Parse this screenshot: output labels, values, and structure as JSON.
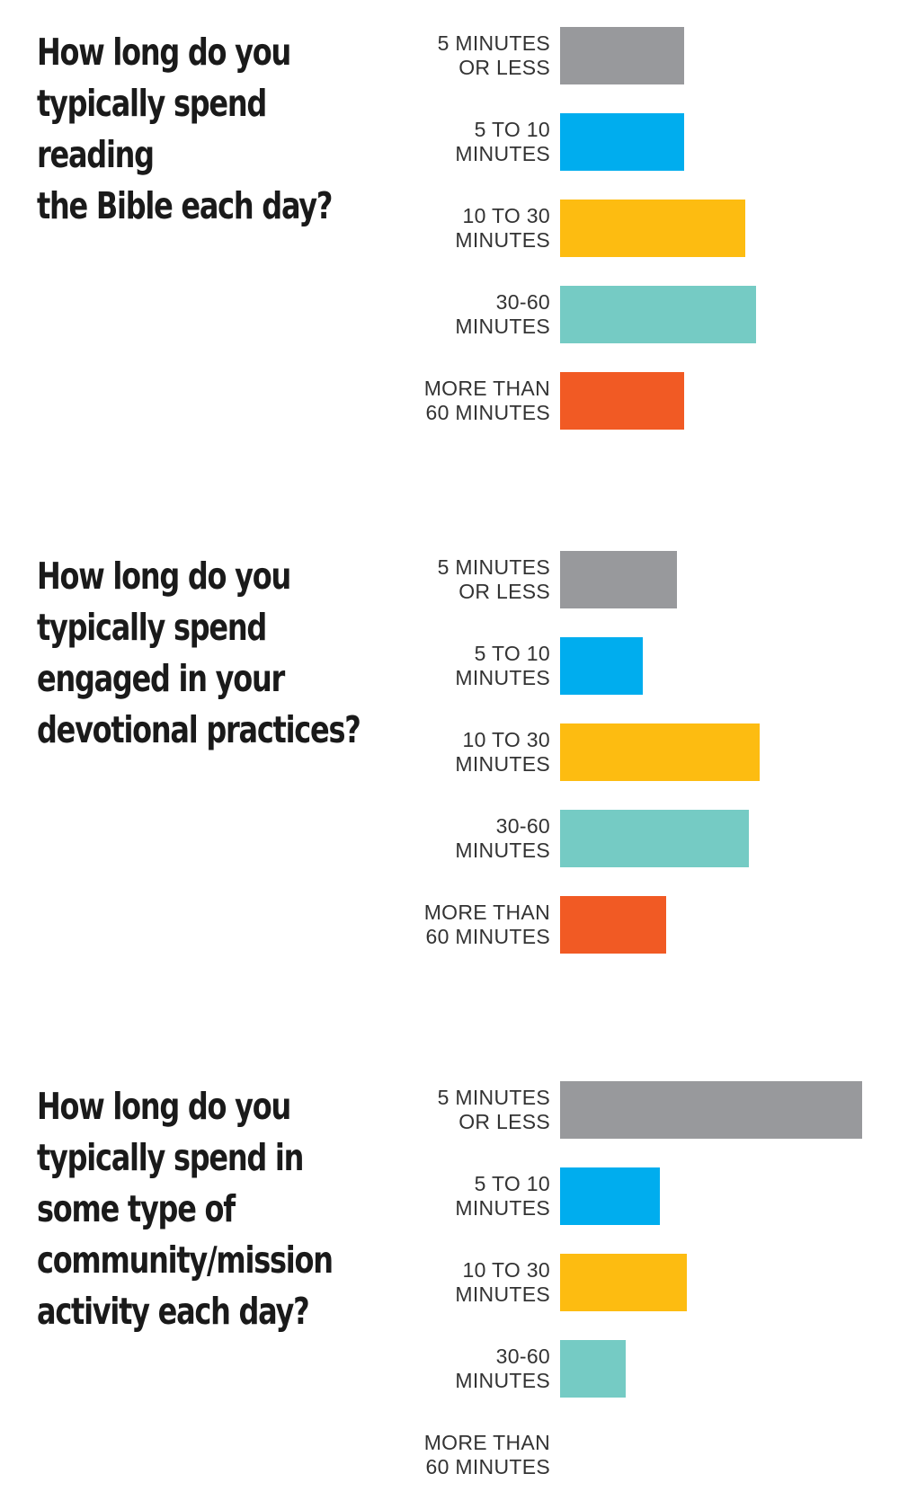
{
  "colors": [
    "#98999c",
    "#00adee",
    "#fdbc11",
    "#75cbc4",
    "#f15a24"
  ],
  "chart_data": [
    {
      "type": "bar",
      "orientation": "horizontal",
      "title": "How long do you typically spend reading the Bible each day?",
      "title_lines": [
        "How long do you",
        "typically spend reading",
        "the Bible each day?"
      ],
      "categories": [
        "5 MINUTES OR LESS",
        "5 TO 10 MINUTES",
        "10 TO 30 MINUTES",
        "30-60 MINUTES",
        "MORE THAN 60 MINUTES"
      ],
      "category_lines": [
        [
          "5 MINUTES",
          "OR LESS"
        ],
        [
          "5 TO 10",
          "MINUTES"
        ],
        [
          "10 TO 30",
          "MINUTES"
        ],
        [
          "30-60",
          "MINUTES"
        ],
        [
          "MORE THAN",
          "60 MINUTES"
        ]
      ],
      "values": [
        18,
        18,
        27,
        28.5,
        18
      ],
      "xlim": [
        0,
        45
      ],
      "grid": false,
      "legend": "none"
    },
    {
      "type": "bar",
      "orientation": "horizontal",
      "title": "How long do you typically spend engaged in your devotional practices?",
      "title_lines": [
        "How long do you",
        "typically spend",
        "engaged in your",
        "devotional practices?"
      ],
      "categories": [
        "5 MINUTES OR LESS",
        "5 TO 10 MINUTES",
        "10 TO 30 MINUTES",
        "30-60 MINUTES",
        "MORE THAN 60 MINUTES"
      ],
      "category_lines": [
        [
          "5 MINUTES",
          "OR LESS"
        ],
        [
          "5 TO 10",
          "MINUTES"
        ],
        [
          "10 TO 30",
          "MINUTES"
        ],
        [
          "30-60",
          "MINUTES"
        ],
        [
          "MORE THAN",
          "60 MINUTES"
        ]
      ],
      "values": [
        17,
        12,
        29,
        27.5,
        15.5
      ],
      "xlim": [
        0,
        45
      ],
      "grid": false,
      "legend": "none"
    },
    {
      "type": "bar",
      "orientation": "horizontal",
      "title": "How long do you typically spend in some type of community/mission activity each day?",
      "title_lines": [
        "How long do you",
        "typically spend in",
        "some type of",
        "community/mission",
        "activity each day?"
      ],
      "categories": [
        "5 MINUTES OR LESS",
        "5 TO 10 MINUTES",
        "10 TO 30 MINUTES",
        "30-60 MINUTES",
        "MORE THAN 60 MINUTES"
      ],
      "category_lines": [
        [
          "5 MINUTES",
          "OR LESS"
        ],
        [
          "5 TO 10",
          "MINUTES"
        ],
        [
          "10 TO 30",
          "MINUTES"
        ],
        [
          "30-60",
          "MINUTES"
        ],
        [
          "MORE THAN",
          "60 MINUTES"
        ]
      ],
      "values": [
        44,
        14.5,
        18.5,
        9.5,
        0
      ],
      "xlim": [
        0,
        45
      ],
      "grid": false,
      "legend": "none"
    }
  ]
}
